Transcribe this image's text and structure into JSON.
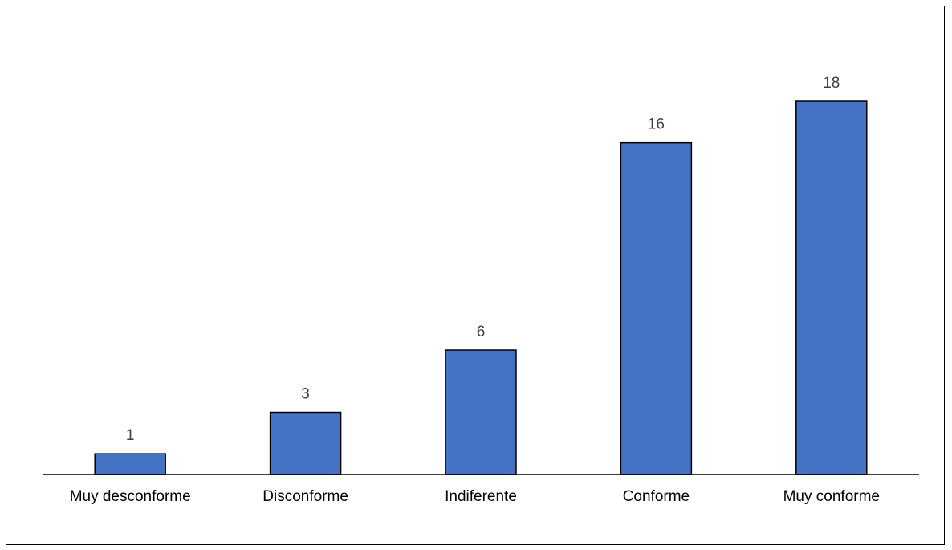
{
  "chart_data": {
    "type": "bar",
    "title": "",
    "xlabel": "",
    "ylabel": "",
    "categories": [
      "Muy desconforme",
      "Disconforme",
      "Indiferente",
      "Conforme",
      "Muy conforme"
    ],
    "values": [
      1,
      3,
      6,
      16,
      18
    ],
    "data_labels": [
      "1",
      "3",
      "6",
      "16",
      "18"
    ],
    "ylim": [
      0,
      18
    ],
    "grid": false,
    "legend": "none",
    "y_axis_visible": false,
    "bar_color": "#4472C4",
    "bar_border_color": "#000000"
  }
}
